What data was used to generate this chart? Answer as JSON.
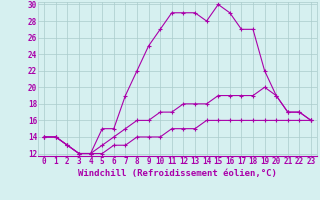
{
  "xlabel": "Windchill (Refroidissement éolien,°C)",
  "background_color": "#d6f0f0",
  "line_color": "#aa00aa",
  "grid_color": "#aacccc",
  "x": [
    0,
    1,
    2,
    3,
    4,
    5,
    6,
    7,
    8,
    9,
    10,
    11,
    12,
    13,
    14,
    15,
    16,
    17,
    18,
    19,
    20,
    21,
    22,
    23
  ],
  "line1": [
    14,
    14,
    13,
    12,
    12,
    15,
    15,
    19,
    22,
    25,
    27,
    29,
    29,
    29,
    28,
    30,
    29,
    27,
    27,
    22,
    19,
    17,
    17,
    16
  ],
  "line2": [
    14,
    14,
    13,
    12,
    12,
    13,
    14,
    15,
    16,
    16,
    17,
    17,
    18,
    18,
    18,
    19,
    19,
    19,
    19,
    20,
    19,
    17,
    17,
    16
  ],
  "line3": [
    14,
    14,
    13,
    12,
    12,
    12,
    13,
    13,
    14,
    14,
    14,
    15,
    15,
    15,
    16,
    16,
    16,
    16,
    16,
    16,
    16,
    16,
    16,
    16
  ],
  "ylim": [
    12,
    30
  ],
  "xlim": [
    -0.5,
    23.5
  ],
  "yticks": [
    12,
    14,
    16,
    18,
    20,
    22,
    24,
    26,
    28,
    30
  ],
  "xticks": [
    0,
    1,
    2,
    3,
    4,
    5,
    6,
    7,
    8,
    9,
    10,
    11,
    12,
    13,
    14,
    15,
    16,
    17,
    18,
    19,
    20,
    21,
    22,
    23
  ],
  "xlabel_fontsize": 6.5,
  "tick_fontsize": 5.5,
  "marker_size": 3,
  "linewidth": 0.8
}
